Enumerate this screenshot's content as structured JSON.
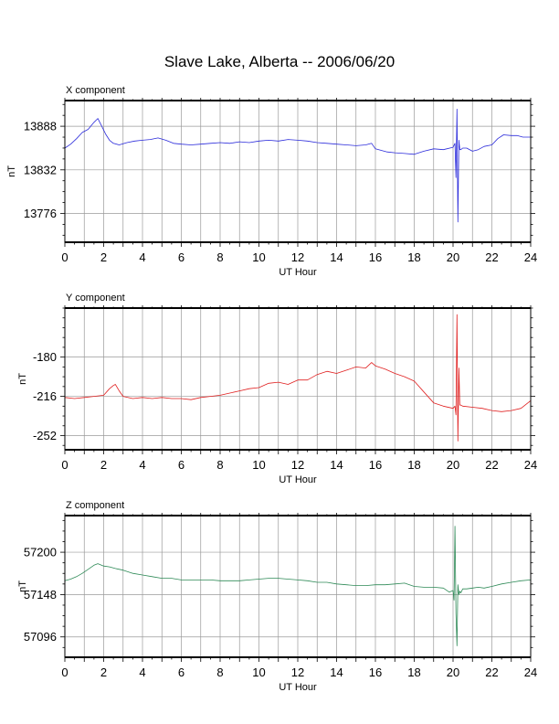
{
  "title": "Slave Lake, Alberta -- 2006/06/20",
  "chart_data": [
    {
      "type": "line",
      "title": "X component",
      "xlabel": "UT Hour",
      "ylabel": "nT",
      "xlim": [
        0,
        24
      ],
      "ylim": [
        13739,
        13921
      ],
      "xticks": [
        "0",
        "2",
        "4",
        "6",
        "8",
        "10",
        "12",
        "14",
        "16",
        "18",
        "20",
        "22",
        "24"
      ],
      "yticks": [
        "13776",
        "13832",
        "13888"
      ],
      "ytick_values": [
        13776,
        13832,
        13888
      ],
      "grid": true,
      "color": "#2b2bdb",
      "series": [
        {
          "x": [
            0,
            0.3,
            0.6,
            0.9,
            1.2,
            1.5,
            1.7,
            1.9,
            2.1,
            2.3,
            2.5,
            2.8,
            3.2,
            3.6,
            4.0,
            4.4,
            4.8,
            5.2,
            5.6,
            6.0,
            6.5,
            7.0,
            7.5,
            8.0,
            8.5,
            9.0,
            9.5,
            10.0,
            10.5,
            11.0,
            11.5,
            12.0,
            12.5,
            13.0,
            13.5,
            14.0,
            14.5,
            15.0,
            15.5,
            15.8,
            16.0,
            16.3,
            16.6,
            17.0,
            17.5,
            18.0,
            18.5,
            19.0,
            19.5,
            20.0,
            20.1,
            20.15,
            20.2,
            20.25,
            20.3,
            20.35,
            20.4,
            20.5,
            20.7,
            21.0,
            21.3,
            21.6,
            22.0,
            22.3,
            22.6,
            23.0,
            23.3,
            23.6,
            24.0
          ],
          "y": [
            13860,
            13865,
            13872,
            13880,
            13884,
            13893,
            13898,
            13888,
            13878,
            13870,
            13866,
            13864,
            13867,
            13869,
            13870,
            13871,
            13873,
            13870,
            13866,
            13865,
            13864,
            13865,
            13866,
            13867,
            13866,
            13868,
            13867,
            13869,
            13870,
            13869,
            13871,
            13870,
            13869,
            13867,
            13866,
            13865,
            13864,
            13863,
            13864,
            13866,
            13859,
            13857,
            13855,
            13854,
            13853,
            13852,
            13856,
            13859,
            13858,
            13861,
            13866,
            13822,
            13910,
            13765,
            13870,
            13858,
            13858,
            13860,
            13860,
            13856,
            13858,
            13862,
            13864,
            13872,
            13877,
            13876,
            13876,
            13874,
            13874
          ]
        }
      ]
    },
    {
      "type": "line",
      "title": "Y component",
      "xlabel": "UT Hour",
      "ylabel": "nT",
      "xlim": [
        0,
        24
      ],
      "ylim": [
        -265,
        -135
      ],
      "xticks": [
        "0",
        "2",
        "4",
        "6",
        "8",
        "10",
        "12",
        "14",
        "16",
        "18",
        "20",
        "22",
        "24"
      ],
      "yticks": [
        "-252",
        "-216",
        "-180"
      ],
      "ytick_values": [
        -252,
        -216,
        -180
      ],
      "grid": true,
      "color": "#e02020",
      "series": [
        {
          "x": [
            0,
            0.5,
            1.0,
            1.5,
            2.0,
            2.3,
            2.5,
            2.6,
            2.8,
            3.0,
            3.5,
            4.0,
            4.5,
            5.0,
            5.5,
            6.0,
            6.5,
            7.0,
            7.5,
            8.0,
            8.5,
            9.0,
            9.5,
            10.0,
            10.5,
            11.0,
            11.5,
            12.0,
            12.5,
            13.0,
            13.5,
            14.0,
            14.5,
            15.0,
            15.5,
            15.8,
            16.0,
            16.5,
            17.0,
            17.5,
            18.0,
            18.5,
            19.0,
            19.5,
            20.0,
            20.1,
            20.15,
            20.2,
            20.25,
            20.3,
            20.35,
            20.4,
            20.5,
            21.0,
            21.5,
            22.0,
            22.5,
            23.0,
            23.5,
            24.0
          ],
          "y": [
            -217,
            -218,
            -217,
            -216,
            -215,
            -209,
            -206,
            -205,
            -211,
            -216,
            -218,
            -217,
            -218,
            -217,
            -218,
            -218,
            -219,
            -217,
            -216,
            -215,
            -213,
            -211,
            -209,
            -208,
            -204,
            -203,
            -205,
            -201,
            -201,
            -196,
            -193,
            -195,
            -192,
            -189,
            -190,
            -185,
            -188,
            -191,
            -195,
            -198,
            -202,
            -212,
            -222,
            -225,
            -227,
            -225,
            -233,
            -141,
            -257,
            -190,
            -224,
            -224,
            -225,
            -226,
            -227,
            -229,
            -230,
            -229,
            -227,
            -220
          ]
        }
      ]
    },
    {
      "type": "line",
      "title": "Z component",
      "xlabel": "UT Hour",
      "ylabel": "nT",
      "xlim": [
        0,
        24
      ],
      "ylim": [
        57071,
        57245
      ],
      "xticks": [
        "0",
        "2",
        "4",
        "6",
        "8",
        "10",
        "12",
        "14",
        "16",
        "18",
        "20",
        "22",
        "24"
      ],
      "yticks": [
        "57096",
        "57148",
        "57200"
      ],
      "ytick_values": [
        57096,
        57148,
        57200
      ],
      "grid": true,
      "color": "#2e8a57",
      "series": [
        {
          "x": [
            0,
            0.3,
            0.6,
            0.9,
            1.2,
            1.5,
            1.7,
            2.0,
            2.3,
            2.6,
            3.0,
            3.5,
            4.0,
            4.5,
            5.0,
            5.5,
            6.0,
            6.5,
            7.0,
            7.5,
            8.0,
            8.5,
            9.0,
            9.5,
            10.0,
            10.5,
            11.0,
            11.5,
            12.0,
            12.5,
            13.0,
            13.5,
            14.0,
            14.5,
            15.0,
            15.5,
            16.0,
            16.5,
            17.0,
            17.5,
            18.0,
            18.5,
            19.0,
            19.5,
            19.8,
            20.0,
            20.05,
            20.1,
            20.15,
            20.2,
            20.25,
            20.3,
            20.35,
            20.4,
            20.5,
            20.7,
            21.0,
            21.3,
            21.6,
            22.0,
            22.5,
            23.0,
            23.5,
            24.0
          ],
          "y": [
            57165,
            57167,
            57170,
            57174,
            57179,
            57184,
            57186,
            57183,
            57182,
            57180,
            57178,
            57174,
            57172,
            57170,
            57168,
            57168,
            57166,
            57166,
            57166,
            57166,
            57165,
            57165,
            57165,
            57166,
            57167,
            57168,
            57168,
            57167,
            57166,
            57165,
            57163,
            57163,
            57161,
            57160,
            57159,
            57159,
            57160,
            57160,
            57161,
            57162,
            57158,
            57157,
            57157,
            57156,
            57151,
            57153,
            57141,
            57232,
            57125,
            57085,
            57160,
            57148,
            57152,
            57150,
            57155,
            57155,
            57156,
            57157,
            57156,
            57158,
            57161,
            57163,
            57165,
            57166
          ]
        }
      ]
    }
  ]
}
